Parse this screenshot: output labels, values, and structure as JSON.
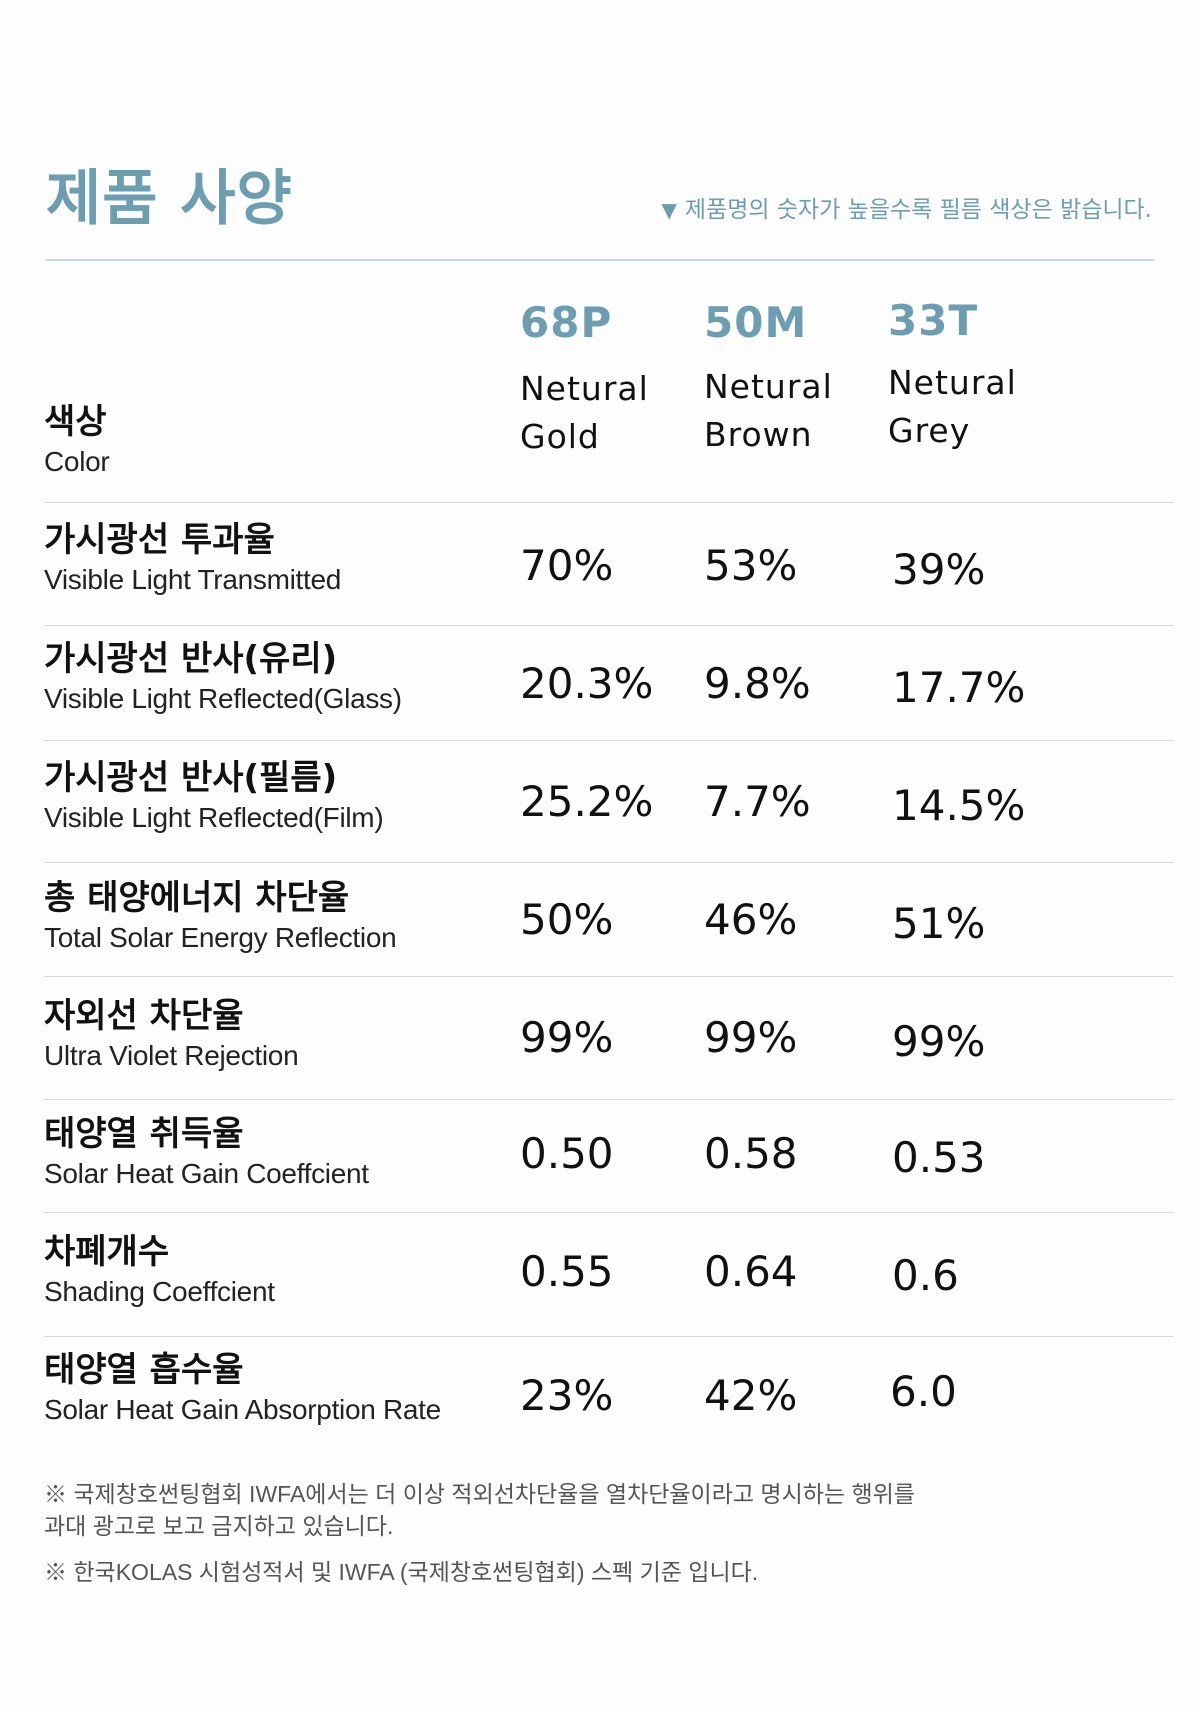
{
  "header": {
    "title": "제품 사양",
    "note_symbol": "▼",
    "note": "제품명의 숫자가 높을수록 필름 색상은 밝습니다."
  },
  "products": [
    {
      "code": "68P",
      "color_line1": "Netural",
      "color_line2": "Gold"
    },
    {
      "code": "50M",
      "color_line1": "Netural",
      "color_line2": "Brown"
    },
    {
      "code": "33T",
      "color_line1": "Netural",
      "color_line2": "Grey"
    }
  ],
  "color_label": {
    "ko": "색상",
    "en": "Color"
  },
  "rows": [
    {
      "ko": "가시광선 투과율",
      "en": "Visible Light Transmitted",
      "values": [
        "70%",
        "53%",
        "39%"
      ]
    },
    {
      "ko": "가시광선 반사(유리)",
      "en": "Visible Light Reflected(Glass)",
      "values": [
        "20.3%",
        "9.8%",
        "17.7%"
      ]
    },
    {
      "ko": "가시광선 반사(필름)",
      "en": "Visible Light Reflected(Film)",
      "values": [
        "25.2%",
        "7.7%",
        "14.5%"
      ]
    },
    {
      "ko": "총 태양에너지 차단율",
      "en": "Total Solar Energy Reflection",
      "values": [
        "50%",
        "46%",
        "51%"
      ]
    },
    {
      "ko": "자외선 차단율",
      "en": "Ultra Violet Rejection",
      "values": [
        "99%",
        "99%",
        "99%"
      ]
    },
    {
      "ko": "태양열 취득율",
      "en": "Solar Heat Gain Coeffcient",
      "values": [
        "0.50",
        "0.58",
        "0.53"
      ]
    },
    {
      "ko": "차폐개수",
      "en": "Shading Coeffcient",
      "values": [
        "0.55",
        "0.64",
        "0.6"
      ]
    },
    {
      "ko": "태양열 흡수율",
      "en": "Solar Heat Gain Absorption Rate",
      "values": [
        "23%",
        "42%",
        "6.0"
      ]
    }
  ],
  "footnotes": {
    "line1": "※ 국제창호썬팅협회 IWFA에서는 더 이상 적외선차단율을 열차단율이라고 명시하는 행위를",
    "line2": "과대 광고로 보고 금지하고 있습니다.",
    "line3": "※ 한국KOLAS 시험성적서 및 IWFA (국제창호썬팅협회) 스펙 기준 입니다."
  }
}
